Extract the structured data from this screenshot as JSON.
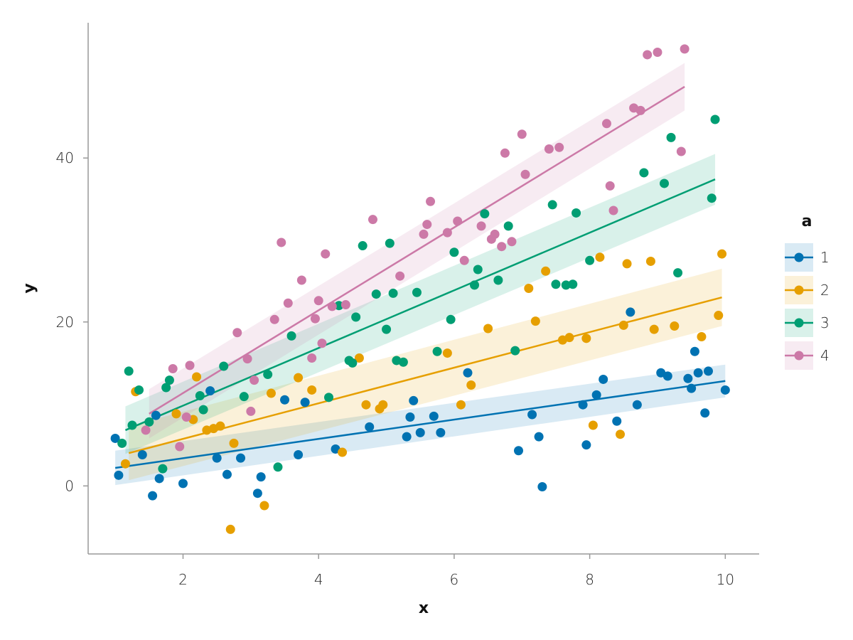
{
  "chart_data": {
    "type": "scatter",
    "title": "",
    "xlabel": "x",
    "ylabel": "y",
    "xlim": [
      0.6,
      10.5
    ],
    "ylim": [
      -8.3,
      56.5
    ],
    "x_ticks": [
      "2",
      "4",
      "6",
      "8",
      "10"
    ],
    "y_ticks": [
      "0",
      "20",
      "40"
    ],
    "grid": false,
    "legend": {
      "title": "a",
      "placement": "right"
    },
    "series": [
      {
        "name": "1",
        "color": "#0072B2",
        "fit": {
          "x": [
            1.0,
            10.0
          ],
          "y": [
            2.2,
            12.8
          ],
          "band_halfwidth": [
            2.1,
            2.0
          ]
        },
        "points": [
          [
            1.0,
            5.8
          ],
          [
            1.05,
            1.3
          ],
          [
            1.4,
            3.8
          ],
          [
            1.55,
            -1.2
          ],
          [
            1.6,
            8.6
          ],
          [
            1.65,
            0.9
          ],
          [
            2.0,
            0.3
          ],
          [
            2.4,
            11.6
          ],
          [
            2.5,
            3.4
          ],
          [
            2.65,
            1.4
          ],
          [
            2.85,
            3.4
          ],
          [
            3.1,
            -0.9
          ],
          [
            3.15,
            1.1
          ],
          [
            3.5,
            10.5
          ],
          [
            3.7,
            3.8
          ],
          [
            3.8,
            10.2
          ],
          [
            4.25,
            4.5
          ],
          [
            4.75,
            7.2
          ],
          [
            5.3,
            6.0
          ],
          [
            5.35,
            8.4
          ],
          [
            5.4,
            10.4
          ],
          [
            5.5,
            6.5
          ],
          [
            5.7,
            8.5
          ],
          [
            5.8,
            6.5
          ],
          [
            6.2,
            13.8
          ],
          [
            6.95,
            4.3
          ],
          [
            7.15,
            8.7
          ],
          [
            7.25,
            6.0
          ],
          [
            7.3,
            -0.1
          ],
          [
            7.9,
            9.9
          ],
          [
            7.95,
            5.0
          ],
          [
            8.1,
            11.1
          ],
          [
            8.2,
            13.0
          ],
          [
            8.4,
            7.9
          ],
          [
            8.6,
            21.2
          ],
          [
            8.7,
            9.9
          ],
          [
            9.05,
            13.8
          ],
          [
            9.15,
            13.4
          ],
          [
            9.45,
            13.1
          ],
          [
            9.5,
            11.9
          ],
          [
            9.55,
            16.4
          ],
          [
            9.6,
            13.8
          ],
          [
            9.7,
            8.9
          ],
          [
            9.75,
            14.0
          ],
          [
            10.0,
            11.7
          ]
        ]
      },
      {
        "name": "2",
        "color": "#E69F00",
        "fit": {
          "x": [
            1.2,
            9.95
          ],
          "y": [
            4.0,
            23.0
          ],
          "band_halfwidth": [
            3.3,
            3.5
          ]
        },
        "points": [
          [
            1.15,
            2.7
          ],
          [
            1.3,
            11.5
          ],
          [
            1.9,
            8.8
          ],
          [
            2.15,
            8.1
          ],
          [
            2.2,
            13.3
          ],
          [
            2.35,
            6.8
          ],
          [
            2.45,
            7.0
          ],
          [
            2.55,
            7.3
          ],
          [
            2.7,
            -5.3
          ],
          [
            2.75,
            5.2
          ],
          [
            3.2,
            -2.4
          ],
          [
            3.3,
            11.3
          ],
          [
            3.7,
            13.2
          ],
          [
            3.9,
            11.7
          ],
          [
            4.35,
            4.1
          ],
          [
            4.6,
            15.6
          ],
          [
            4.7,
            9.9
          ],
          [
            4.9,
            9.4
          ],
          [
            4.95,
            9.9
          ],
          [
            5.9,
            16.2
          ],
          [
            6.1,
            9.9
          ],
          [
            6.25,
            12.3
          ],
          [
            6.5,
            19.2
          ],
          [
            7.1,
            24.1
          ],
          [
            7.2,
            20.1
          ],
          [
            7.35,
            26.2
          ],
          [
            7.6,
            17.8
          ],
          [
            7.7,
            18.1
          ],
          [
            7.95,
            18.0
          ],
          [
            8.05,
            7.4
          ],
          [
            8.15,
            27.9
          ],
          [
            8.45,
            6.3
          ],
          [
            8.5,
            19.6
          ],
          [
            8.55,
            27.1
          ],
          [
            8.9,
            27.4
          ],
          [
            8.95,
            19.1
          ],
          [
            9.25,
            19.5
          ],
          [
            9.65,
            18.2
          ],
          [
            9.9,
            20.8
          ],
          [
            9.95,
            28.3
          ]
        ]
      },
      {
        "name": "3",
        "color": "#009E73",
        "fit": {
          "x": [
            1.15,
            9.85
          ],
          "y": [
            6.8,
            37.4
          ],
          "band_halfwidth": [
            2.9,
            3.1
          ]
        },
        "points": [
          [
            1.1,
            5.2
          ],
          [
            1.2,
            14.0
          ],
          [
            1.25,
            7.4
          ],
          [
            1.35,
            11.7
          ],
          [
            1.5,
            7.8
          ],
          [
            1.7,
            2.1
          ],
          [
            1.75,
            12.0
          ],
          [
            1.8,
            12.9
          ],
          [
            2.25,
            11.0
          ],
          [
            2.3,
            9.3
          ],
          [
            2.6,
            14.6
          ],
          [
            2.9,
            10.9
          ],
          [
            3.25,
            13.6
          ],
          [
            3.4,
            2.3
          ],
          [
            3.6,
            18.3
          ],
          [
            4.15,
            10.8
          ],
          [
            4.3,
            22.0
          ],
          [
            4.45,
            15.3
          ],
          [
            4.5,
            15.0
          ],
          [
            4.55,
            20.6
          ],
          [
            4.65,
            29.3
          ],
          [
            4.85,
            23.4
          ],
          [
            5.0,
            19.1
          ],
          [
            5.05,
            29.6
          ],
          [
            5.1,
            23.5
          ],
          [
            5.15,
            15.3
          ],
          [
            5.25,
            15.1
          ],
          [
            5.45,
            23.6
          ],
          [
            5.75,
            16.4
          ],
          [
            5.95,
            20.3
          ],
          [
            6.0,
            28.5
          ],
          [
            6.3,
            24.5
          ],
          [
            6.35,
            26.4
          ],
          [
            6.45,
            33.2
          ],
          [
            6.65,
            25.1
          ],
          [
            6.8,
            31.7
          ],
          [
            6.9,
            16.5
          ],
          [
            7.45,
            34.3
          ],
          [
            7.5,
            24.6
          ],
          [
            7.65,
            24.5
          ],
          [
            7.75,
            24.6
          ],
          [
            7.8,
            33.3
          ],
          [
            8.0,
            27.5
          ],
          [
            8.8,
            38.2
          ],
          [
            9.1,
            36.9
          ],
          [
            9.2,
            42.5
          ],
          [
            9.3,
            26.0
          ],
          [
            9.8,
            35.1
          ],
          [
            9.85,
            44.7
          ]
        ]
      },
      {
        "name": "4",
        "color": "#CC79A7",
        "fit": {
          "x": [
            1.5,
            9.4
          ],
          "y": [
            8.8,
            48.7
          ],
          "band_halfwidth": [
            3.0,
            2.9
          ]
        },
        "points": [
          [
            1.45,
            6.8
          ],
          [
            1.85,
            14.3
          ],
          [
            1.95,
            4.8
          ],
          [
            2.05,
            8.4
          ],
          [
            2.1,
            14.7
          ],
          [
            2.8,
            18.7
          ],
          [
            2.95,
            15.5
          ],
          [
            3.0,
            9.1
          ],
          [
            3.05,
            12.9
          ],
          [
            3.35,
            20.3
          ],
          [
            3.45,
            29.7
          ],
          [
            3.55,
            22.3
          ],
          [
            3.75,
            25.1
          ],
          [
            3.9,
            15.6
          ],
          [
            3.95,
            20.4
          ],
          [
            4.0,
            22.6
          ],
          [
            4.05,
            17.4
          ],
          [
            4.1,
            28.3
          ],
          [
            4.2,
            21.9
          ],
          [
            4.4,
            22.1
          ],
          [
            4.8,
            32.5
          ],
          [
            5.2,
            25.6
          ],
          [
            5.55,
            30.7
          ],
          [
            5.6,
            31.9
          ],
          [
            5.65,
            34.7
          ],
          [
            5.9,
            30.9
          ],
          [
            6.05,
            32.3
          ],
          [
            6.15,
            27.5
          ],
          [
            6.4,
            31.7
          ],
          [
            6.55,
            30.1
          ],
          [
            6.6,
            30.7
          ],
          [
            6.7,
            29.2
          ],
          [
            6.75,
            40.6
          ],
          [
            6.85,
            29.8
          ],
          [
            7.0,
            42.9
          ],
          [
            7.05,
            38.0
          ],
          [
            7.4,
            41.1
          ],
          [
            7.55,
            41.3
          ],
          [
            8.25,
            44.2
          ],
          [
            8.3,
            36.6
          ],
          [
            8.35,
            33.6
          ],
          [
            8.65,
            46.1
          ],
          [
            8.75,
            45.8
          ],
          [
            8.85,
            52.6
          ],
          [
            9.0,
            52.9
          ],
          [
            9.35,
            40.8
          ],
          [
            9.4,
            53.3
          ]
        ]
      }
    ]
  }
}
